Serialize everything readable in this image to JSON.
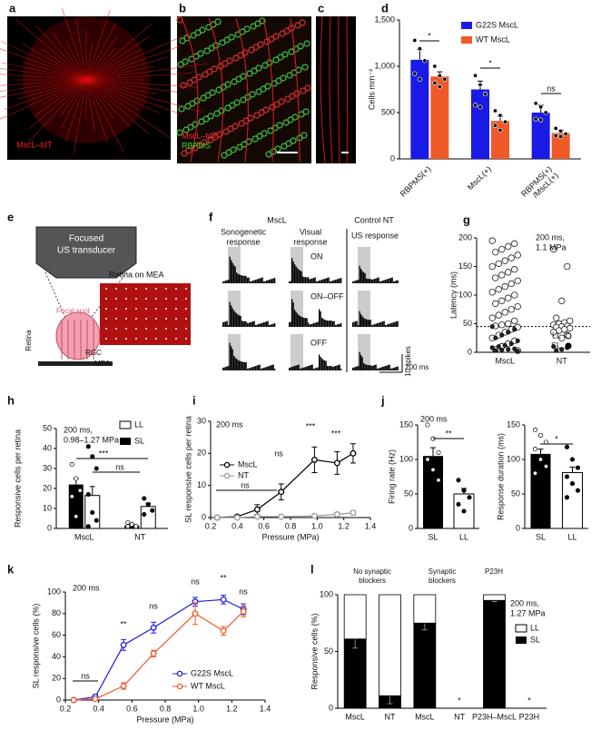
{
  "panels": {
    "a": {
      "label": "a",
      "caption": "MscL–tdT"
    },
    "b": {
      "label": "b",
      "captions": [
        "MscL–tdT",
        "RBPMS"
      ]
    },
    "c": {
      "label": "c"
    },
    "e": {
      "label": "e",
      "transducer": [
        "Focused",
        "US transducer"
      ],
      "mea_title": "Retina on MEA",
      "focal_spot": "Focal spot",
      "retina": "Retina",
      "rgc": "RGC",
      "mea": "MEA"
    },
    "f": {
      "label": "f",
      "group": "MscL",
      "control": "Control NT",
      "columns": [
        [
          "Sonogenetic",
          "response"
        ],
        [
          "Visual",
          "response"
        ],
        [
          "US response"
        ]
      ],
      "rows": [
        "ON",
        "ON–OFF",
        "OFF"
      ],
      "scale_y": "10 spikes",
      "scale_x": "200 ms"
    }
  },
  "chart_data": [
    {
      "type": "bar",
      "label": "d",
      "ylabel": "Cells mm⁻²",
      "categories": [
        "RBPMS(+)",
        "MscL(+)",
        [
          "RBPMS(+)",
          "/MscL(+)"
        ]
      ],
      "series": [
        {
          "name": "G22S MscL",
          "color": "#1a1ae6",
          "values": [
            1070,
            750,
            500
          ],
          "errors": [
            110,
            90,
            80
          ],
          "points": [
            [
              1280,
              1190,
              1060,
              920,
              860
            ],
            [
              900,
              800,
              700,
              580,
              560
            ],
            [
              600,
              560,
              500,
              430,
              420
            ]
          ]
        },
        {
          "name": "WT MscL",
          "color": "#f05a28",
          "values": [
            890,
            410,
            280
          ],
          "errors": [
            50,
            50,
            30
          ],
          "points": [
            [
              1000,
              900,
              860,
              820,
              780
            ],
            [
              520,
              470,
              400,
              360,
              310
            ],
            [
              330,
              300,
              270,
              250,
              240
            ]
          ]
        }
      ],
      "ylim": [
        0,
        1500
      ],
      "yticks": [
        0,
        500,
        {
          "value": 1000,
          "label": "1,000"
        },
        {
          "value": 1500,
          "label": "1,500"
        }
      ],
      "annotations": [
        "*",
        "*",
        "ns"
      ]
    },
    {
      "type": "scatter",
      "label": "g",
      "ylabel": "Latency (ms)",
      "categories": [
        "MscL",
        "NT"
      ],
      "series": [
        {
          "name": "LL",
          "color": "#ffffff",
          "values": [
            [
              195,
              190,
              185,
              180,
              175,
              170,
              165,
              160,
              155,
              150,
              145,
              140,
              135,
              130,
              125,
              120,
              115,
              110,
              105,
              100,
              95,
              90,
              85,
              80,
              75,
              70,
              65,
              60,
              55,
              50,
              48,
              46,
              44,
              40,
              35,
              30,
              25,
              20,
              15,
              10,
              5,
              3
            ],
            [
              180,
              150,
              90,
              60,
              55,
              52,
              50,
              48,
              46,
              45,
              44,
              42,
              40,
              38,
              35,
              30,
              25
            ]
          ]
        },
        {
          "name": "SL",
          "color": "#000000",
          "values": [
            [
              45,
              40,
              35,
              30,
              25,
              20,
              15,
              12,
              10,
              8,
              6,
              5,
              4,
              3,
              2
            ],
            [
              10,
              8,
              5,
              3
            ]
          ]
        }
      ],
      "ylim": [
        0,
        200
      ],
      "yticks": [
        0,
        50,
        100,
        150,
        200
      ],
      "reference_line": 45,
      "annotations": [
        "200 ms,",
        "1.1 MPa"
      ]
    },
    {
      "type": "bar",
      "label": "h",
      "ylabel": "Responsive cells per retina",
      "categories": [
        "MscL",
        "NT"
      ],
      "series": [
        {
          "name": "SL",
          "color": "#000000",
          "values": [
            22,
            1.5
          ],
          "errors": [
            3,
            0.6
          ],
          "points": [
            [
              32,
              25,
              19,
              16,
              6
            ],
            [
              3,
              2,
              1,
              1
            ]
          ]
        },
        {
          "name": "LL",
          "color": "#ffffff",
          "values": [
            16.5,
            11
          ],
          "errors": [
            4.5,
            1.7
          ],
          "points": [
            [
              41,
              36,
              30,
              17,
              8,
              4,
              1
            ],
            [
              15,
              12,
              9,
              7
            ]
          ]
        }
      ],
      "ylim": [
        0,
        50
      ],
      "yticks": [
        0,
        10,
        20,
        30,
        40,
        50
      ],
      "annotations": [
        "200 ms,",
        "0.98–1.27 MPa",
        "***",
        "ns"
      ]
    },
    {
      "type": "line",
      "label": "i",
      "ylabel": "SL responsive cells per retina",
      "xlabel": "Pressure (MPa)",
      "x": [
        0.25,
        0.4,
        0.55,
        0.73,
        0.98,
        1.15,
        1.27
      ],
      "xlim": [
        0.2,
        1.4
      ],
      "xticks": [
        0.2,
        0.4,
        0.6,
        0.8,
        {
          "value": 1,
          "label": "1.0"
        },
        1.2,
        1.4
      ],
      "ylim": [
        0,
        30
      ],
      "yticks": [
        0,
        10,
        20,
        30
      ],
      "series": [
        {
          "name": "MscL",
          "color": "#000000",
          "values": [
            0,
            0.3,
            2.5,
            8,
            18,
            17,
            20
          ],
          "errors": [
            0,
            0.3,
            1.5,
            2.5,
            4,
            3.5,
            3
          ]
        },
        {
          "name": "NT",
          "color": "#999999",
          "values": [
            0,
            0,
            0.3,
            0.3,
            0.5,
            1,
            1.5
          ],
          "errors": [
            0,
            0,
            0.2,
            0.2,
            0.3,
            0.5,
            0.6
          ]
        }
      ],
      "annotations": [
        "200 ms",
        "ns",
        "ns",
        "***",
        "***"
      ]
    },
    {
      "type": "bar",
      "label": "j",
      "ylabel": "Firing rate (Hz)",
      "categories": [
        "SL",
        "LL"
      ],
      "values": [
        105,
        50
      ],
      "colors": [
        "#000000",
        "#ffffff"
      ],
      "errors": [
        12,
        8
      ],
      "points": [
        [
          150,
          130,
          110,
          100,
          85,
          70
        ],
        [
          70,
          55,
          45,
          35,
          25
        ]
      ],
      "ylim": [
        0,
        150
      ],
      "yticks": [
        0,
        50,
        100,
        150
      ],
      "annotations": [
        "200 ms",
        "**"
      ]
    },
    {
      "type": "bar",
      "ylabel": "Response duration (ms)",
      "categories": [
        "SL",
        "LL"
      ],
      "values": [
        108,
        81
      ],
      "colors": [
        "#000000",
        "#ffffff"
      ],
      "errors": [
        7,
        8
      ],
      "points": [
        [
          143,
          135,
          125,
          115,
          100,
          90,
          80
        ],
        [
          118,
          100,
          88,
          75,
          65,
          55,
          45
        ]
      ],
      "ylim": [
        0,
        150
      ],
      "yticks": [
        0,
        50,
        100,
        150
      ],
      "annotations": [
        "*"
      ]
    },
    {
      "type": "line",
      "label": "k",
      "ylabel": "SL responsive cells (%)",
      "xlabel": "Pressure (MPa)",
      "x": [
        0.25,
        0.38,
        0.55,
        0.73,
        0.98,
        1.15,
        1.27
      ],
      "xlim": [
        0.2,
        1.4
      ],
      "xticks": [
        0.2,
        0.4,
        0.6,
        0.8,
        {
          "value": 1,
          "label": "1.0"
        },
        1.2,
        1.4
      ],
      "ylim": [
        0,
        100
      ],
      "yticks": [
        0,
        20,
        40,
        60,
        80,
        100
      ],
      "series": [
        {
          "name": "G22S MscL",
          "color": "#1a1ae6",
          "values": [
            0,
            3,
            51,
            67,
            91,
            93,
            84
          ],
          "errors": [
            0,
            2,
            5,
            5,
            4,
            4,
            5
          ]
        },
        {
          "name": "WT MscL",
          "color": "#f05a28",
          "values": [
            0,
            1,
            13,
            43,
            80,
            64,
            82
          ],
          "errors": [
            0,
            1,
            3,
            3,
            10,
            4,
            5
          ]
        }
      ],
      "annotations": [
        "200 ms",
        "ns",
        "**",
        "ns",
        "ns",
        "**",
        "ns"
      ]
    },
    {
      "type": "stacked_bar",
      "label": "l",
      "ylabel": "Responsive cells (%)",
      "categories": [
        "MscL",
        "NT",
        "MscL",
        "NT",
        "P23H–MscL",
        "P23H"
      ],
      "groups": [
        [
          "No synaptic",
          "blockers"
        ],
        [
          "Synaptic",
          "blockers"
        ],
        [
          "P23H"
        ]
      ],
      "series": [
        {
          "name": "SL",
          "color": "#000000",
          "values": [
            61,
            11,
            75,
            0,
            95,
            0
          ],
          "errors": [
            8,
            7,
            6,
            0,
            1,
            0
          ]
        },
        {
          "name": "LL",
          "color": "#ffffff",
          "values": [
            39,
            89,
            25,
            0,
            5,
            0
          ]
        }
      ],
      "ylim": [
        0,
        100
      ],
      "yticks": [
        0,
        50,
        100
      ],
      "annotations": [
        "200 ms,",
        "1.27 MPa",
        "*",
        "*"
      ]
    }
  ]
}
